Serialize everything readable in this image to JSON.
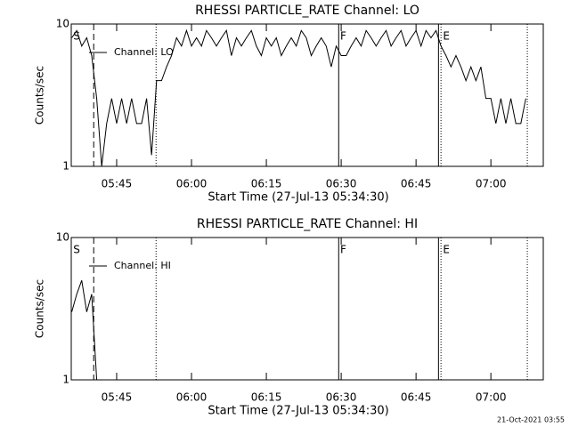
{
  "charts": [
    {
      "type": "line",
      "title": "RHESSI PARTICLE_RATE Channel: LO",
      "xlabel": "Start Time (27-Jul-13 05:34:30)",
      "ylabel": "Counts/sec",
      "yscale": "log",
      "xlim": [
        35.9,
        130.5
      ],
      "ylim": [
        1,
        10
      ],
      "yticks": [
        1,
        10
      ],
      "xticks": [
        {
          "value": 45,
          "label": "05:45"
        },
        {
          "value": 60,
          "label": "06:00"
        },
        {
          "value": 75,
          "label": "06:15"
        },
        {
          "value": 90,
          "label": "06:30"
        },
        {
          "value": 105,
          "label": "06:45"
        },
        {
          "value": 120,
          "label": "07:00"
        }
      ],
      "markers": [
        {
          "x": 40.4,
          "style": "dashed"
        },
        {
          "x": 52.9,
          "style": "dotted"
        },
        {
          "x": 89.5,
          "style": "solid"
        },
        {
          "x": 109.5,
          "style": "solid"
        },
        {
          "x": 110,
          "style": "dotted"
        },
        {
          "x": 127.3,
          "style": "dotted"
        }
      ],
      "labels": [
        {
          "text": "S",
          "x": 36.3
        },
        {
          "text": "F",
          "x": 89.8
        },
        {
          "text": "E",
          "x": 110.4
        }
      ],
      "x": [
        36,
        37,
        38,
        39,
        40,
        41,
        42,
        43,
        44,
        45,
        46,
        47,
        48,
        49,
        50,
        51,
        52,
        53,
        54,
        55,
        56,
        57,
        58,
        59,
        60,
        61,
        62,
        63,
        64,
        65,
        66,
        67,
        68,
        69,
        70,
        71,
        72,
        73,
        74,
        75,
        76,
        77,
        78,
        79,
        80,
        81,
        82,
        83,
        84,
        85,
        86,
        87,
        88,
        89,
        90,
        91,
        92,
        93,
        94,
        95,
        96,
        97,
        98,
        99,
        100,
        101,
        102,
        103,
        104,
        105,
        106,
        107,
        108,
        109,
        110,
        111,
        112,
        113,
        114,
        115,
        116,
        117,
        118,
        119,
        120,
        121,
        122,
        123,
        124,
        125,
        126,
        127
      ],
      "series": [
        {
          "name": "Channel: LO",
          "color": "#000000",
          "values": [
            8,
            9,
            7,
            8,
            6,
            3,
            1,
            2,
            3,
            2,
            3,
            2,
            3,
            2,
            2,
            3,
            1.2,
            4,
            4,
            5,
            6,
            8,
            7,
            9,
            7,
            8,
            7,
            9,
            8,
            7,
            8,
            9,
            6,
            8,
            7,
            8,
            9,
            7,
            6,
            8,
            7,
            8,
            6,
            7,
            8,
            7,
            9,
            8,
            6,
            7,
            8,
            7,
            5,
            7,
            6,
            6,
            7,
            8,
            7,
            9,
            8,
            7,
            8,
            9,
            7,
            8,
            9,
            7,
            8,
            9,
            7,
            9,
            8,
            9,
            7,
            6,
            5,
            6,
            5,
            4,
            5,
            4,
            5,
            3,
            3,
            2,
            3,
            2,
            3,
            2,
            2,
            3
          ]
        }
      ]
    },
    {
      "type": "line",
      "title": "RHESSI PARTICLE_RATE Channel: HI",
      "xlabel": "Start Time (27-Jul-13 05:34:30)",
      "ylabel": "Counts/sec",
      "yscale": "log",
      "xlim": [
        35.9,
        130.5
      ],
      "ylim": [
        1,
        10
      ],
      "yticks": [
        1,
        10
      ],
      "xticks": [
        {
          "value": 45,
          "label": "05:45"
        },
        {
          "value": 60,
          "label": "06:00"
        },
        {
          "value": 75,
          "label": "06:15"
        },
        {
          "value": 90,
          "label": "06:30"
        },
        {
          "value": 105,
          "label": "06:45"
        },
        {
          "value": 120,
          "label": "07:00"
        }
      ],
      "markers": [
        {
          "x": 40.4,
          "style": "dashed"
        },
        {
          "x": 52.9,
          "style": "dotted"
        },
        {
          "x": 89.5,
          "style": "solid"
        },
        {
          "x": 109.5,
          "style": "solid"
        },
        {
          "x": 110,
          "style": "dotted"
        },
        {
          "x": 127.3,
          "style": "dotted"
        }
      ],
      "labels": [
        {
          "text": "S",
          "x": 36.3
        },
        {
          "text": "F",
          "x": 89.8
        },
        {
          "text": "E",
          "x": 110.4
        }
      ],
      "x": [
        36,
        37,
        38,
        39,
        40,
        41
      ],
      "series": [
        {
          "name": "Channel: HI",
          "color": "#000000",
          "values": [
            3,
            4,
            5,
            3,
            4,
            1
          ]
        }
      ]
    }
  ],
  "footer": "21-Oct-2021 03:55"
}
